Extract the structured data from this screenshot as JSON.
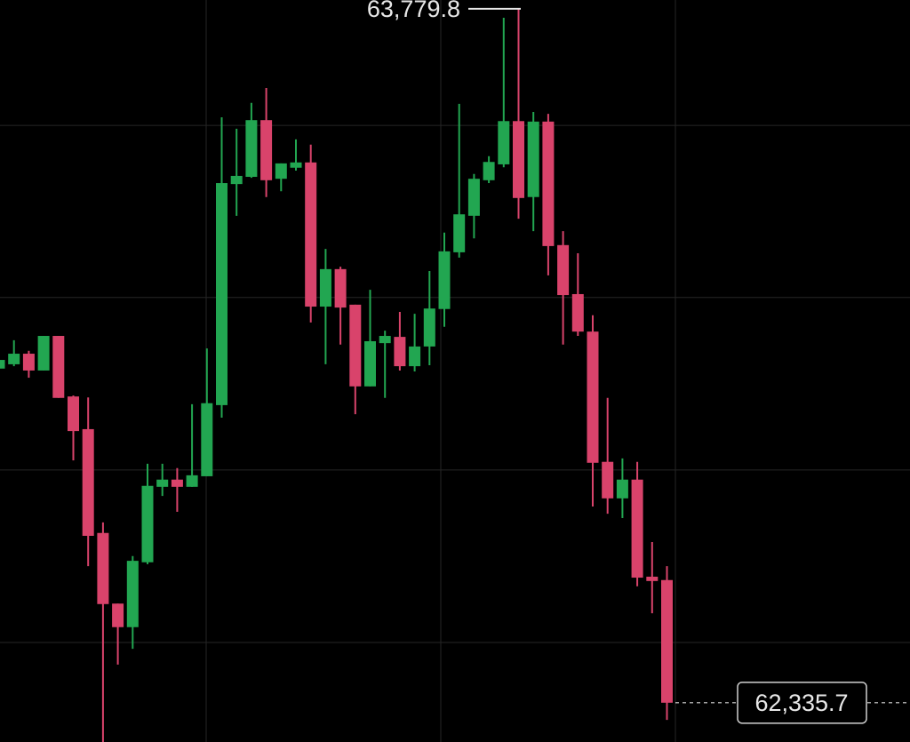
{
  "chart_data": {
    "type": "candlestick",
    "ylim": [
      62254,
      63798
    ],
    "yticks": [
      63537,
      63179,
      62820,
      62461
    ],
    "grid": true,
    "up_color": "#22a651",
    "down_color": "#d9436b",
    "open": [
      63031,
      63040,
      63062,
      63027,
      63099,
      62973,
      62905,
      62689,
      62542,
      62493,
      62628,
      62785,
      62800,
      62785,
      62807,
      62955,
      63415,
      63430,
      63548,
      63426,
      63449,
      63460,
      63160,
      63238,
      63164,
      62994,
      63084,
      63097,
      63036,
      63077,
      63155,
      63273,
      63349,
      63423,
      63456,
      63546,
      63388,
      63545,
      63288,
      63186,
      63108,
      62837,
      62761,
      62800,
      62598,
      62591
    ],
    "high": [
      63058,
      63090,
      63068,
      63099,
      63099,
      62975,
      62971,
      62711,
      62542,
      62641,
      62833,
      62833,
      62824,
      62957,
      63073,
      63554,
      63530,
      63584,
      63615,
      63458,
      63508,
      63497,
      63280,
      63243,
      63164,
      63195,
      63110,
      63149,
      63145,
      63234,
      63314,
      63582,
      63436,
      63473,
      63761,
      63779.8,
      63565,
      63561,
      63317,
      63271,
      63142,
      62970,
      62844,
      62837,
      62670,
      62620
    ],
    "low": [
      63025,
      63036,
      63012,
      63027,
      62970,
      62840,
      62620,
      62245,
      62415,
      62448,
      62624,
      62766,
      62733,
      62785,
      62807,
      62929,
      63349,
      63428,
      63388,
      63400,
      63443,
      63127,
      63040,
      63081,
      62936,
      62994,
      62970,
      63027,
      63025,
      63038,
      63118,
      63262,
      63302,
      63417,
      63450,
      63343,
      63317,
      63225,
      63081,
      63099,
      62744,
      62729,
      62720,
      62578,
      62522,
      62300
    ],
    "close": [
      63049,
      63062,
      63027,
      63099,
      62970,
      62901,
      62683,
      62541,
      62493,
      62631,
      62787,
      62800,
      62785,
      62809,
      62959,
      63417,
      63432,
      63548,
      63423,
      63458,
      63460,
      63160,
      63238,
      63158,
      62994,
      63088,
      63099,
      63036,
      63077,
      63156,
      63275,
      63352,
      63426,
      63461,
      63546,
      63386,
      63545,
      63286,
      63184,
      63108,
      62835,
      62761,
      62800,
      62596,
      62589,
      62335.7
    ],
    "annotations": [
      {
        "value": 63779.8,
        "label": "63,779.8"
      },
      {
        "value": 62335.7,
        "label": "62,335.7"
      }
    ]
  }
}
